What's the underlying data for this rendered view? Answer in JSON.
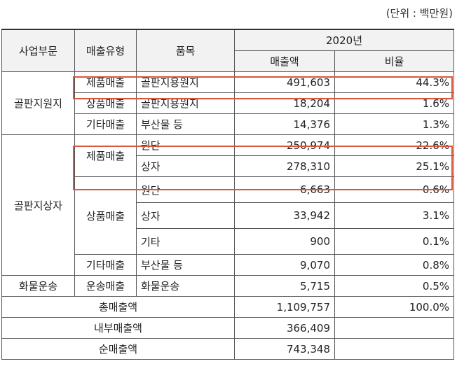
{
  "unit_label": "(단위 : 백만원)",
  "headers": {
    "division": "사업부문",
    "sales_type": "매출유형",
    "item": "품목",
    "year": "2020년",
    "sales": "매출액",
    "ratio": "비율"
  },
  "rows": {
    "r1": {
      "division": "골판지원지",
      "type": "제품매출",
      "item": "골판지용원지",
      "sales": "491,603",
      "ratio": "44.3%"
    },
    "r2": {
      "type": "상품매출",
      "item": "골판지용원지",
      "sales": "18,204",
      "ratio": "1.6%"
    },
    "r3": {
      "type": "기타매출",
      "item": "부산물 등",
      "sales": "14,376",
      "ratio": "1.3%"
    },
    "r4": {
      "division": "골판지상자",
      "type": "제품매출",
      "item": "원단",
      "sales": "250,974",
      "ratio": "22.6%"
    },
    "r5": {
      "item": "상자",
      "sales": "278,310",
      "ratio": "25.1%"
    },
    "r6": {
      "type": "상품매출",
      "item": "원단",
      "sales": "6,663",
      "ratio": "0.6%"
    },
    "r7": {
      "item": "상자",
      "sales": "33,942",
      "ratio": "3.1%"
    },
    "r8": {
      "item": "기타",
      "sales": "900",
      "ratio": "0.1%"
    },
    "r9": {
      "type": "기타매출",
      "item": "부산물 등",
      "sales": "9,070",
      "ratio": "0.8%"
    },
    "r10": {
      "division": "화물운송",
      "type": "운송매출",
      "item": "화물운송",
      "sales": "5,715",
      "ratio": "0.5%"
    }
  },
  "totals": {
    "gross": {
      "label": "총매출액",
      "sales": "1,109,757",
      "ratio": "100.0%"
    },
    "internal": {
      "label": "내부매출액",
      "sales": "366,409",
      "ratio": ""
    },
    "net": {
      "label": "순매출액",
      "sales": "743,348",
      "ratio": ""
    }
  },
  "highlight_color": "#d9573c"
}
